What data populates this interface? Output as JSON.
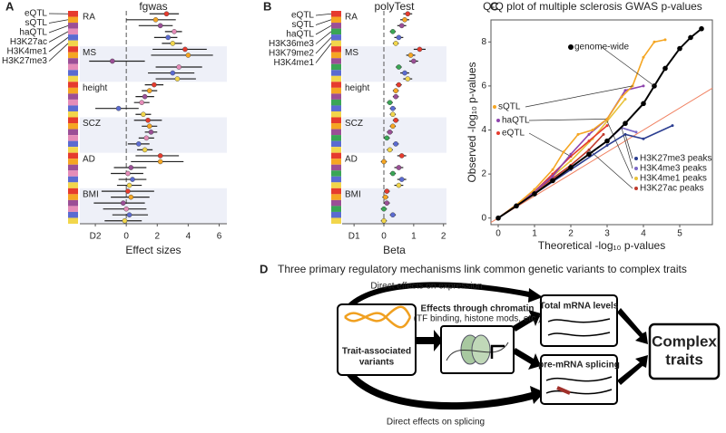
{
  "chart_data": [
    {
      "type": "forest",
      "panel": "A",
      "title": "fgwas",
      "xlabel": "Effect sizes",
      "groups": [
        "RA",
        "MS",
        "height",
        "SCZ",
        "AD",
        "BMI"
      ],
      "series": [
        {
          "name": "eQTL",
          "color": "#e63b2e",
          "values": [
            2.6,
            3.8,
            1.8,
            1.4,
            2.2,
            0.1
          ],
          "lower": [
            1.5,
            1.7,
            1.2,
            0.5,
            0.6,
            -1.6
          ],
          "upper": [
            3.4,
            5.2,
            2.4,
            2.3,
            3.4,
            1.8
          ]
        },
        {
          "name": "sQTL",
          "color": "#f5a623",
          "values": [
            1.9,
            4.0,
            1.5,
            1.5,
            2.2,
            0.3
          ],
          "lower": [
            0.0,
            1.6,
            1.0,
            1.0,
            0.3,
            -1.0
          ],
          "upper": [
            3.2,
            5.6,
            2.0,
            2.0,
            3.7,
            1.5
          ]
        },
        {
          "name": "haQTL",
          "color": "#9b4f96",
          "values": [
            2.2,
            -0.9,
            1.2,
            1.6,
            0.3,
            -0.2
          ],
          "lower": [
            0.8,
            -2.4,
            0.6,
            1.2,
            -0.8,
            -2.1
          ],
          "upper": [
            3.0,
            1.2,
            1.8,
            2.0,
            1.3,
            1.2
          ]
        },
        {
          "name": "H3K27ac",
          "color": "#e58cb8",
          "values": [
            3.1,
            3.4,
            1.0,
            1.3,
            0.1,
            0.0
          ],
          "lower": [
            2.5,
            1.9,
            0.5,
            0.8,
            -1.0,
            -1.5
          ],
          "upper": [
            3.6,
            4.9,
            1.5,
            1.8,
            1.1,
            1.3
          ]
        },
        {
          "name": "H3K4me1",
          "color": "#5b6bd1",
          "values": [
            2.7,
            3.0,
            -0.5,
            0.8,
            0.4,
            0.2
          ],
          "lower": [
            1.8,
            1.4,
            -2.0,
            0.1,
            -0.5,
            -0.9
          ],
          "upper": [
            3.3,
            4.4,
            0.8,
            1.5,
            1.3,
            1.4
          ]
        },
        {
          "name": "H3K27me3",
          "color": "#f2d64b",
          "values": [
            3.0,
            3.3,
            1.1,
            1.2,
            0.2,
            -0.1
          ],
          "lower": [
            2.3,
            1.9,
            0.6,
            0.7,
            -0.6,
            -1.4
          ],
          "upper": [
            3.6,
            4.5,
            1.6,
            1.7,
            1.0,
            1.0
          ]
        }
      ],
      "xlim": [
        -3.0,
        6.5
      ],
      "xticks": [
        {
          "value": -2,
          "label": "D2"
        },
        0,
        2,
        4,
        6
      ]
    },
    {
      "type": "forest",
      "panel": "B",
      "title": "polyTest",
      "xlabel": "Beta",
      "groups": [
        "RA",
        "MS",
        "height",
        "SCZ",
        "AD",
        "BMI"
      ],
      "series": [
        {
          "name": "eQTL",
          "color": "#e63b2e",
          "values": [
            0.8,
            1.2,
            0.5,
            0.4,
            0.6,
            0.1
          ],
          "lower": [
            0.65,
            1.0,
            0.4,
            0.3,
            0.45,
            0.0
          ],
          "upper": [
            0.95,
            1.4,
            0.6,
            0.5,
            0.75,
            0.2
          ]
        },
        {
          "name": "sQTL",
          "color": "#f5a623",
          "values": [
            0.7,
            0.9,
            0.4,
            0.3,
            0.0,
            0.05
          ],
          "lower": [
            0.55,
            0.75,
            0.3,
            0.2,
            -0.1,
            -0.05
          ],
          "upper": [
            0.85,
            1.05,
            0.5,
            0.4,
            0.1,
            0.15
          ]
        },
        {
          "name": "haQTL",
          "color": "#9b4f96",
          "values": [
            0.6,
            1.0,
            0.4,
            0.2,
            0.5,
            0.1
          ],
          "lower": [
            0.45,
            0.85,
            0.3,
            0.1,
            0.35,
            0.0
          ],
          "upper": [
            0.75,
            1.15,
            0.5,
            0.3,
            0.65,
            0.2
          ]
        },
        {
          "name": "H3K36me3",
          "color": "#3aa655",
          "values": [
            0.3,
            0.5,
            0.2,
            0.1,
            0.3,
            0.0
          ],
          "lower": [
            0.2,
            0.4,
            0.1,
            0.0,
            0.2,
            -0.1
          ],
          "upper": [
            0.4,
            0.6,
            0.3,
            0.2,
            0.4,
            0.1
          ]
        },
        {
          "name": "H3K79me2",
          "color": "#5b6bd1",
          "values": [
            0.5,
            0.7,
            0.3,
            0.4,
            0.6,
            0.3
          ],
          "lower": [
            0.35,
            0.55,
            0.2,
            0.3,
            0.45,
            0.2
          ],
          "upper": [
            0.65,
            0.85,
            0.4,
            0.5,
            0.75,
            0.4
          ]
        },
        {
          "name": "H3K4me1",
          "color": "#f2d64b",
          "values": [
            0.4,
            0.8,
            0.3,
            0.2,
            0.5,
            0.0
          ],
          "lower": [
            0.3,
            0.65,
            0.2,
            0.1,
            0.35,
            -0.1
          ],
          "upper": [
            0.5,
            0.95,
            0.4,
            0.3,
            0.65,
            0.1
          ]
        }
      ],
      "xlim": [
        -1.4,
        2.1
      ],
      "xticks": [
        {
          "value": -1,
          "label": "D1"
        },
        0,
        1,
        2
      ]
    },
    {
      "type": "line",
      "panel": "C",
      "title": "Q-Q plot of multiple sclerosis GWAS p-values",
      "xlabel": "Theoretical -log₁₀ p-values",
      "ylabel": "Observed -log₁₀ p-values",
      "series": [
        {
          "name": "genome-wide",
          "color": "#000000",
          "x": [
            0,
            0.5,
            1,
            1.5,
            2,
            2.5,
            3,
            3.5,
            4,
            4.3,
            4.6,
            5,
            5.3,
            5.6
          ],
          "values": [
            0,
            0.55,
            1.1,
            1.7,
            2.3,
            2.9,
            3.5,
            4.3,
            5.2,
            6.0,
            6.8,
            7.7,
            8.2,
            8.6
          ]
        },
        {
          "name": "sQTL",
          "color": "#f5a623",
          "x": [
            0,
            0.5,
            1,
            1.5,
            1.8,
            2.2,
            2.6,
            3,
            3.4,
            3.7,
            4,
            4.3,
            4.6
          ],
          "values": [
            0,
            0.6,
            1.3,
            2.2,
            3.0,
            3.8,
            4.0,
            4.5,
            5.5,
            6.0,
            7.3,
            8.0,
            8.1
          ]
        },
        {
          "name": "haQTL",
          "color": "#8e44ad",
          "x": [
            0,
            0.5,
            1,
            1.5,
            2,
            2.5,
            3,
            3.5,
            4
          ],
          "values": [
            0,
            0.6,
            1.2,
            1.9,
            2.9,
            3.8,
            4.5,
            5.8,
            6.0
          ]
        },
        {
          "name": "eQTL",
          "color": "#e63b2e",
          "x": [
            0,
            0.5,
            1,
            1.5,
            2,
            2.5,
            3
          ],
          "values": [
            0,
            0.6,
            1.2,
            2.0,
            2.8,
            3.5,
            4.2
          ]
        },
        {
          "name": "H3K27me3 peaks",
          "color": "#2c3e91",
          "x": [
            0,
            1,
            2,
            3,
            3.5,
            4,
            4.8
          ],
          "values": [
            0,
            1.1,
            2.2,
            3.3,
            3.8,
            3.6,
            4.2
          ]
        },
        {
          "name": "H3K4me3 peaks",
          "color": "#7b68c8",
          "x": [
            0,
            1,
            2,
            3,
            3.4,
            3.8
          ],
          "values": [
            0,
            1.1,
            2.3,
            3.5,
            4.1,
            3.9
          ]
        },
        {
          "name": "H3K4me1 peaks",
          "color": "#e8c23a",
          "x": [
            0,
            1,
            2,
            2.6,
            3,
            3.5
          ],
          "values": [
            0,
            1.2,
            2.6,
            3.6,
            4.4,
            5.4
          ]
        },
        {
          "name": "H3K27ac peaks",
          "color": "#c0392b",
          "x": [
            0,
            1,
            2,
            2.5,
            2.9
          ],
          "values": [
            0,
            1.2,
            2.4,
            3.1,
            3.8
          ]
        }
      ],
      "xlim": [
        -0.2,
        5.9
      ],
      "ylim": [
        -0.3,
        9
      ],
      "xticks": [
        0,
        1,
        2,
        3,
        4,
        5
      ],
      "yticks": [
        0,
        2,
        4,
        6,
        8
      ]
    }
  ],
  "diagram": {
    "panel": "D",
    "title": "Three primary regulatory mechanisms link common genetic variants to complex traits",
    "top_edge": "Direct effects on expression",
    "bottom_edge": "Direct effects on splicing",
    "source": [
      "Trait-associated",
      "variants"
    ],
    "chromatin": {
      "title": "Effects through chromatin",
      "subtitle": "(TF binding, histone mods, etc.)"
    },
    "expression": "Total mRNA levels",
    "splicing": "pre-mRNA splicing",
    "target": [
      "Complex",
      "traits"
    ]
  }
}
